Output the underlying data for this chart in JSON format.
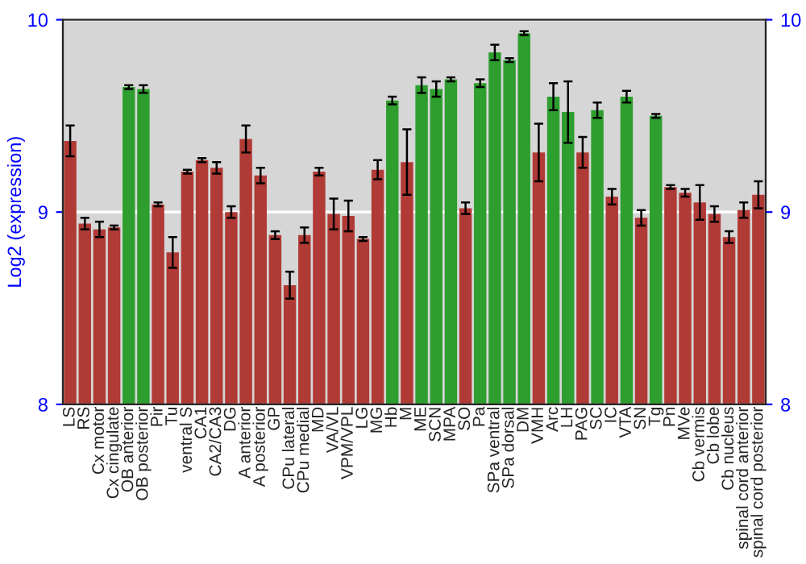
{
  "chart_data": {
    "type": "bar",
    "ylabel": "Log2 (expression)",
    "categories": [
      "LS",
      "RS",
      "Cx motor",
      "Cx cingulate",
      "OB anterior",
      "OB posterior",
      "Pir",
      "Tu",
      "ventral S",
      "CA1",
      "CA2/CA3",
      "DG",
      "A anterior",
      "A posterior",
      "GP",
      "CPu lateral",
      "CPu medial",
      "MD",
      "VA/VL",
      "VPM/VPL",
      "LG",
      "MG",
      "Hb",
      "M",
      "ME",
      "SCN",
      "MPA",
      "SO",
      "Pa",
      "SPa ventral",
      "SPa dorsal",
      "DM",
      "VMH",
      "Arc",
      "LH",
      "PAG",
      "SC",
      "IC",
      "VTA",
      "SN",
      "Tg",
      "Pn",
      "MVe",
      "Cb vermis",
      "Cb lobe",
      "Cb nucleus",
      "spinal cord anterior",
      "spinal cord posterior"
    ],
    "values": [
      9.37,
      8.94,
      8.91,
      8.92,
      9.65,
      9.64,
      9.04,
      8.79,
      9.21,
      9.27,
      9.23,
      9.0,
      9.38,
      9.19,
      8.88,
      8.62,
      8.88,
      9.21,
      8.99,
      8.98,
      8.86,
      9.22,
      9.58,
      9.26,
      9.66,
      9.64,
      9.69,
      9.02,
      9.67,
      9.83,
      9.79,
      9.93,
      9.31,
      9.6,
      9.52,
      9.31,
      9.53,
      9.08,
      9.6,
      8.97,
      9.5,
      9.13,
      9.1,
      9.05,
      8.99,
      8.87,
      9.01,
      9.09
    ],
    "errors": [
      0.08,
      0.03,
      0.04,
      0.01,
      0.01,
      0.02,
      0.01,
      0.08,
      0.01,
      0.01,
      0.03,
      0.03,
      0.07,
      0.04,
      0.02,
      0.07,
      0.04,
      0.02,
      0.08,
      0.08,
      0.01,
      0.05,
      0.02,
      0.17,
      0.04,
      0.04,
      0.01,
      0.03,
      0.02,
      0.04,
      0.01,
      0.01,
      0.15,
      0.07,
      0.16,
      0.08,
      0.04,
      0.04,
      0.03,
      0.04,
      0.01,
      0.01,
      0.02,
      0.09,
      0.04,
      0.03,
      0.04,
      0.07
    ],
    "colors": [
      "#b03a35",
      "#b03a35",
      "#b03a35",
      "#b03a35",
      "#2e9e2e",
      "#2e9e2e",
      "#b03a35",
      "#b03a35",
      "#b03a35",
      "#b03a35",
      "#b03a35",
      "#b03a35",
      "#b03a35",
      "#b03a35",
      "#b03a35",
      "#b03a35",
      "#b03a35",
      "#b03a35",
      "#b03a35",
      "#b03a35",
      "#b03a35",
      "#b03a35",
      "#2e9e2e",
      "#b03a35",
      "#2e9e2e",
      "#2e9e2e",
      "#2e9e2e",
      "#b03a35",
      "#2e9e2e",
      "#2e9e2e",
      "#2e9e2e",
      "#2e9e2e",
      "#b03a35",
      "#2e9e2e",
      "#2e9e2e",
      "#b03a35",
      "#2e9e2e",
      "#b03a35",
      "#2e9e2e",
      "#b03a35",
      "#2e9e2e",
      "#b03a35",
      "#b03a35",
      "#b03a35",
      "#b03a35",
      "#b03a35",
      "#b03a35",
      "#b03a35"
    ],
    "ylim": [
      8,
      10
    ],
    "yticks": [
      8,
      9,
      10
    ],
    "y2lim": [
      8,
      10
    ],
    "y2ticks": [
      8,
      9,
      10
    ],
    "grid": "y"
  }
}
